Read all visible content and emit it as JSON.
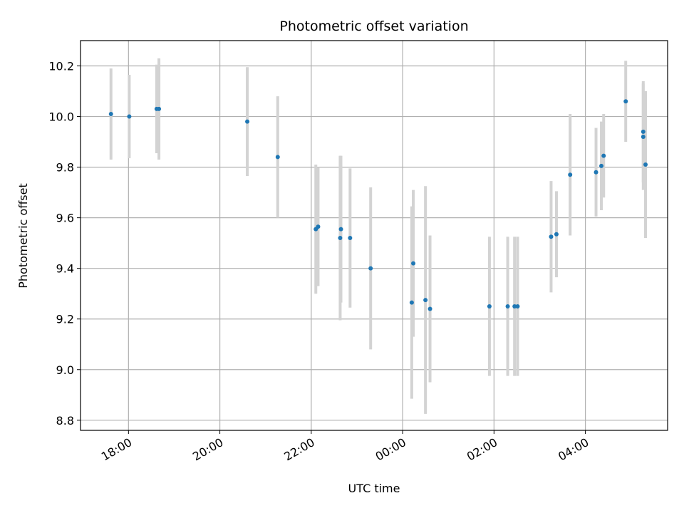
{
  "chart_data": {
    "type": "scatter",
    "title": "Photometric offset variation",
    "xlabel": "UTC time",
    "ylabel": "Photometric offset",
    "x_axis": "time (hours since 00:00 UTC; negative = previous day)",
    "xlim": [
      -7.05,
      5.8
    ],
    "ylim": [
      8.76,
      10.3
    ],
    "grid": true,
    "x_ticks": [
      {
        "value": -6,
        "label": "18:00"
      },
      {
        "value": -4,
        "label": "20:00"
      },
      {
        "value": -2,
        "label": "22:00"
      },
      {
        "value": 0,
        "label": "00:00"
      },
      {
        "value": 2,
        "label": "02:00"
      },
      {
        "value": 4,
        "label": "04:00"
      }
    ],
    "y_ticks": [
      8.8,
      9.0,
      9.2,
      9.4,
      9.6,
      9.8,
      10.0,
      10.2
    ],
    "point_color": "#1f77b4",
    "errorbar_color": "#d3d3d3",
    "series": [
      {
        "points": [
          {
            "x": "17:37",
            "y": 10.01,
            "err": 0.18
          },
          {
            "x": "18:01",
            "y": 10.0,
            "err": 0.165
          },
          {
            "x": "18:37",
            "y": 10.03,
            "err": 0.175
          },
          {
            "x": "18:40",
            "y": 10.03,
            "err": 0.2
          },
          {
            "x": "20:36",
            "y": 9.98,
            "err": 0.215
          },
          {
            "x": "21:16",
            "y": 9.84,
            "err": 0.24
          },
          {
            "x": "22:06",
            "y": 9.555,
            "err": 0.255
          },
          {
            "x": "22:09",
            "y": 9.565,
            "err": 0.235
          },
          {
            "x": "22:38",
            "y": 9.52,
            "err": 0.325
          },
          {
            "x": "22:39",
            "y": 9.555,
            "err": 0.29
          },
          {
            "x": "22:51",
            "y": 9.52,
            "err": 0.275
          },
          {
            "x": "23:18",
            "y": 9.4,
            "err": 0.32
          },
          {
            "x": "00:12",
            "y": 9.265,
            "err": 0.38
          },
          {
            "x": "00:14",
            "y": 9.42,
            "err": 0.29
          },
          {
            "x": "00:30",
            "y": 9.275,
            "err": 0.45
          },
          {
            "x": "00:36",
            "y": 9.24,
            "err": 0.29
          },
          {
            "x": "01:54",
            "y": 9.25,
            "err": 0.275
          },
          {
            "x": "02:18",
            "y": 9.25,
            "err": 0.275
          },
          {
            "x": "02:27",
            "y": 9.25,
            "err": 0.275
          },
          {
            "x": "02:31",
            "y": 9.25,
            "err": 0.275
          },
          {
            "x": "03:15",
            "y": 9.525,
            "err": 0.22
          },
          {
            "x": "03:22",
            "y": 9.535,
            "err": 0.17
          },
          {
            "x": "03:40",
            "y": 9.77,
            "err": 0.24
          },
          {
            "x": "04:14",
            "y": 9.78,
            "err": 0.175
          },
          {
            "x": "04:21",
            "y": 9.805,
            "err": 0.175
          },
          {
            "x": "04:24",
            "y": 9.845,
            "err": 0.165
          },
          {
            "x": "04:53",
            "y": 10.06,
            "err": 0.16
          },
          {
            "x": "05:16",
            "y": 9.94,
            "err": 0.2
          },
          {
            "x": "05:16",
            "y": 9.92,
            "err": 0.21
          },
          {
            "x": "05:19",
            "y": 9.81,
            "err": 0.29
          }
        ]
      }
    ]
  }
}
